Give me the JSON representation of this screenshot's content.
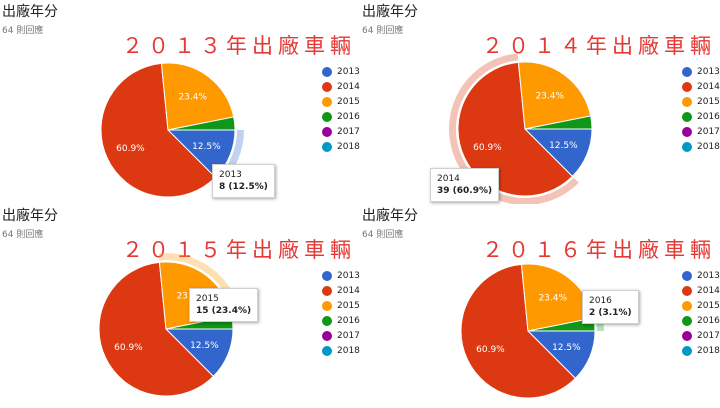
{
  "legend_categories": [
    "2013",
    "2014",
    "2015",
    "2016",
    "2017",
    "2018"
  ],
  "colors": {
    "2013": "#3366cc",
    "2014": "#dc3912",
    "2015": "#ff9900",
    "2016": "#109618",
    "2017": "#990099",
    "2018": "#0099c6"
  },
  "panels": [
    {
      "title": "出廠年分",
      "subtitle": "64 則回應",
      "banner": "２０１３年出廠車輛",
      "highlight": "2013",
      "tooltip_year": "2013",
      "tooltip_value": "8 (12.5%)"
    },
    {
      "title": "出廠年分",
      "subtitle": "64 則回應",
      "banner": "２０１４年出廠車輛",
      "highlight": "2014",
      "tooltip_year": "2014",
      "tooltip_value": "39 (60.9%)"
    },
    {
      "title": "出廠年分",
      "subtitle": "64 則回應",
      "banner": "２０１５年出廠車輛",
      "highlight": "2015",
      "tooltip_year": "2015",
      "tooltip_value": "15 (23.4%)"
    },
    {
      "title": "出廠年分",
      "subtitle": "64 則回應",
      "banner": "２０１６年出廠車輛",
      "highlight": "2016",
      "tooltip_year": "2016",
      "tooltip_value": "2 (3.1%)"
    }
  ],
  "chart_data": [
    {
      "type": "pie",
      "categories": [
        "2013",
        "2014",
        "2015",
        "2016",
        "2017",
        "2018"
      ],
      "values": [
        8,
        39,
        15,
        2,
        0,
        0
      ],
      "slice_labels": [
        "12.5%",
        "60.9%",
        "23.4%",
        "",
        "",
        ""
      ],
      "highlighted": "2013"
    },
    {
      "type": "pie",
      "categories": [
        "2013",
        "2014",
        "2015",
        "2016",
        "2017",
        "2018"
      ],
      "values": [
        8,
        39,
        15,
        2,
        0,
        0
      ],
      "slice_labels": [
        "12.5%",
        "60.9%",
        "23.4%",
        "",
        "",
        ""
      ],
      "highlighted": "2014"
    },
    {
      "type": "pie",
      "categories": [
        "2013",
        "2014",
        "2015",
        "2016",
        "2017",
        "2018"
      ],
      "values": [
        8,
        39,
        15,
        2,
        0,
        0
      ],
      "slice_labels": [
        "12.5%",
        "60.9%",
        "23.4%",
        "",
        "",
        ""
      ],
      "highlighted": "2015"
    },
    {
      "type": "pie",
      "categories": [
        "2013",
        "2014",
        "2015",
        "2016",
        "2017",
        "2018"
      ],
      "values": [
        8,
        39,
        15,
        2,
        0,
        0
      ],
      "slice_labels": [
        "12.5%",
        "60.9%",
        "23.4%",
        "",
        "",
        ""
      ],
      "highlighted": "2016"
    }
  ]
}
